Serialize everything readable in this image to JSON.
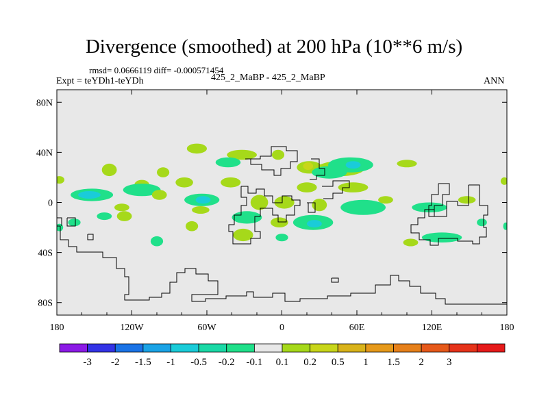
{
  "chart_data": {
    "type": "heatmap",
    "title": "Divergence (smoothed) at 200 hPa (10**6 m/s)",
    "stats_line": "rmsd= 0.0666119 diff= -0.000571454",
    "experiment_label": "Expt = teYDh1-teYDh",
    "case_label": "425_2_MaBP - 425_2_MaBP",
    "season_label": "ANN",
    "x_ticks": [
      {
        "value": -180,
        "label": "180"
      },
      {
        "value": -120,
        "label": "120W"
      },
      {
        "value": -60,
        "label": "60W"
      },
      {
        "value": 0,
        "label": "0"
      },
      {
        "value": 60,
        "label": "60E"
      },
      {
        "value": 120,
        "label": "120E"
      },
      {
        "value": 180,
        "label": "180"
      }
    ],
    "y_ticks": [
      {
        "value": 80,
        "label": "80N"
      },
      {
        "value": 40,
        "label": "40N"
      },
      {
        "value": 0,
        "label": "0"
      },
      {
        "value": -40,
        "label": "40S"
      },
      {
        "value": -80,
        "label": "80S"
      }
    ],
    "xlim": [
      -180,
      180
    ],
    "ylim": [
      -90,
      90
    ],
    "colorbar": {
      "colors": [
        "#8c1ae6",
        "#3333e6",
        "#1a73e6",
        "#1aa3e6",
        "#1accd9",
        "#1ad9a6",
        "#20e08a",
        "#e8e8e8",
        "#a6d91a",
        "#c8d61a",
        "#d9b31a",
        "#e6991a",
        "#e6801a",
        "#e6591a",
        "#e6331a",
        "#e61a1a"
      ],
      "labels": [
        "-3",
        "-2",
        "-1.5",
        "-1",
        "-0.5",
        "-0.2",
        "-0.1",
        "0.1",
        "0.2",
        "0.5",
        "1",
        "1.5",
        "2",
        "3"
      ]
    },
    "blobs": [
      {
        "lon": 47,
        "lat": 27,
        "rx": 19,
        "ry": 6,
        "level": "0.2"
      },
      {
        "lon": 22,
        "lat": 28,
        "rx": 10,
        "ry": 5,
        "level": "0.2"
      },
      {
        "lon": 21,
        "lat": 29,
        "rx": 4,
        "ry": 3,
        "level": "0.5"
      },
      {
        "lon": -3,
        "lat": 38,
        "rx": 5,
        "ry": 4,
        "level": "0.2"
      },
      {
        "lon": -32,
        "lat": 38,
        "rx": 12,
        "ry": 4,
        "level": "0.2"
      },
      {
        "lon": -68,
        "lat": 43,
        "rx": 8,
        "ry": 4,
        "level": "0.2"
      },
      {
        "lon": -43,
        "lat": 32,
        "rx": 10,
        "ry": 4,
        "level": "-0.1"
      },
      {
        "lon": 55,
        "lat": 30,
        "rx": 18,
        "ry": 6,
        "level": "-0.1"
      },
      {
        "lon": 57,
        "lat": 30,
        "rx": 6,
        "ry": 3,
        "level": "-0.2"
      },
      {
        "lon": 38,
        "lat": 24,
        "rx": 14,
        "ry": 5,
        "level": "-0.1"
      },
      {
        "lon": 100,
        "lat": 31,
        "rx": 8,
        "ry": 3,
        "level": "0.2"
      },
      {
        "lon": -138,
        "lat": 26,
        "rx": 6,
        "ry": 5,
        "level": "0.2"
      },
      {
        "lon": -95,
        "lat": 24,
        "rx": 5,
        "ry": 4,
        "level": "0.2"
      },
      {
        "lon": -112,
        "lat": 14,
        "rx": 6,
        "ry": 4,
        "level": "0.2"
      },
      {
        "lon": -78,
        "lat": 16,
        "rx": 7,
        "ry": 4,
        "level": "0.2"
      },
      {
        "lon": -41,
        "lat": 16,
        "rx": 8,
        "ry": 4,
        "level": "0.2"
      },
      {
        "lon": -152,
        "lat": 6,
        "rx": 17,
        "ry": 5,
        "level": "-0.1"
      },
      {
        "lon": -154,
        "lat": 6,
        "rx": 9,
        "ry": 3,
        "level": "-0.2"
      },
      {
        "lon": -112,
        "lat": 10,
        "rx": 15,
        "ry": 5,
        "level": "-0.1"
      },
      {
        "lon": -64,
        "lat": 2,
        "rx": 14,
        "ry": 5,
        "level": "-0.1"
      },
      {
        "lon": -63,
        "lat": 2,
        "rx": 6,
        "ry": 3,
        "level": "-0.2"
      },
      {
        "lon": -98,
        "lat": 6,
        "rx": 6,
        "ry": 4,
        "level": "0.2"
      },
      {
        "lon": -128,
        "lat": -4,
        "rx": 6,
        "ry": 3,
        "level": "0.2"
      },
      {
        "lon": -65,
        "lat": -6,
        "rx": 7,
        "ry": 3,
        "level": "0.2"
      },
      {
        "lon": -18,
        "lat": 0,
        "rx": 7,
        "ry": 6,
        "level": "0.2"
      },
      {
        "lon": 2,
        "lat": 0,
        "rx": 8,
        "ry": 5,
        "level": "0.2"
      },
      {
        "lon": 30,
        "lat": -2,
        "rx": 6,
        "ry": 5,
        "level": "0.2"
      },
      {
        "lon": 20,
        "lat": 12,
        "rx": 8,
        "ry": 4,
        "level": "0.2"
      },
      {
        "lon": 57,
        "lat": 12,
        "rx": 12,
        "ry": 4,
        "level": "0.2"
      },
      {
        "lon": 83,
        "lat": 2,
        "rx": 6,
        "ry": 3,
        "level": "0.2"
      },
      {
        "lon": 148,
        "lat": 2,
        "rx": 7,
        "ry": 3,
        "level": "0.2"
      },
      {
        "lon": -178,
        "lat": 18,
        "rx": 4,
        "ry": 3,
        "level": "0.2"
      },
      {
        "lon": 178,
        "lat": 17,
        "rx": 3,
        "ry": 3,
        "level": "0.2"
      },
      {
        "lon": 65,
        "lat": -4,
        "rx": 18,
        "ry": 6,
        "level": "-0.1"
      },
      {
        "lon": 118,
        "lat": -4,
        "rx": 14,
        "ry": 4,
        "level": "-0.1"
      },
      {
        "lon": -28,
        "lat": -12,
        "rx": 12,
        "ry": 5,
        "level": "-0.1"
      },
      {
        "lon": 25,
        "lat": -16,
        "rx": 16,
        "ry": 6,
        "level": "-0.1"
      },
      {
        "lon": 26,
        "lat": -17,
        "rx": 6,
        "ry": 3,
        "level": "-0.2"
      },
      {
        "lon": -31,
        "lat": -26,
        "rx": 8,
        "ry": 5,
        "level": "0.2"
      },
      {
        "lon": -2,
        "lat": -16,
        "rx": 7,
        "ry": 4,
        "level": "0.2"
      },
      {
        "lon": -126,
        "lat": -11,
        "rx": 6,
        "ry": 4,
        "level": "0.2"
      },
      {
        "lon": -72,
        "lat": -19,
        "rx": 5,
        "ry": 4,
        "level": "0.2"
      },
      {
        "lon": -142,
        "lat": -11,
        "rx": 6,
        "ry": 3,
        "level": "-0.1"
      },
      {
        "lon": -166,
        "lat": -16,
        "rx": 5,
        "ry": 3,
        "level": "-0.1"
      },
      {
        "lon": -100,
        "lat": -31,
        "rx": 5,
        "ry": 4,
        "level": "-0.1"
      },
      {
        "lon": 0,
        "lat": -28,
        "rx": 5,
        "ry": 3,
        "level": "-0.1"
      },
      {
        "lon": 128,
        "lat": -28,
        "rx": 16,
        "ry": 4,
        "level": "-0.1"
      },
      {
        "lon": 103,
        "lat": -32,
        "rx": 6,
        "ry": 3,
        "level": "0.2"
      },
      {
        "lon": -178,
        "lat": -20,
        "rx": 3,
        "ry": 3,
        "level": "-0.1"
      },
      {
        "lon": 179,
        "lat": -19,
        "rx": 2,
        "ry": 3,
        "level": "-0.1"
      },
      {
        "lon": 160,
        "lat": -16,
        "rx": 4,
        "ry": 3,
        "level": "-0.1"
      }
    ]
  }
}
